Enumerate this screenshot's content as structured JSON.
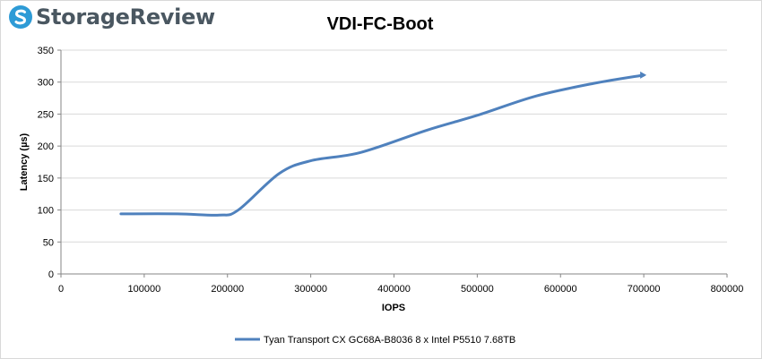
{
  "brand": {
    "name": "StorageReview"
  },
  "chart_data": {
    "type": "line",
    "title": "VDI-FC-Boot",
    "xlabel": "IOPS",
    "ylabel": "Latency (µs)",
    "xlim": [
      0,
      800000
    ],
    "ylim": [
      0,
      350
    ],
    "x_ticks": [
      0,
      100000,
      200000,
      300000,
      400000,
      500000,
      600000,
      700000,
      800000
    ],
    "y_ticks": [
      0,
      50,
      100,
      150,
      200,
      250,
      300,
      350
    ],
    "grid": true,
    "legend_position": "bottom",
    "series": [
      {
        "name": "Tyan Transport CX GC68A-B8036 8 x Intel P5510 7.68TB",
        "color": "#4f81bd",
        "points": [
          [
            72000,
            94
          ],
          [
            140000,
            94
          ],
          [
            190000,
            92
          ],
          [
            213000,
            100
          ],
          [
            262000,
            157
          ],
          [
            300000,
            177
          ],
          [
            360000,
            190
          ],
          [
            440000,
            225
          ],
          [
            500000,
            248
          ],
          [
            570000,
            278
          ],
          [
            640000,
            298
          ],
          [
            700000,
            311
          ]
        ]
      }
    ]
  }
}
